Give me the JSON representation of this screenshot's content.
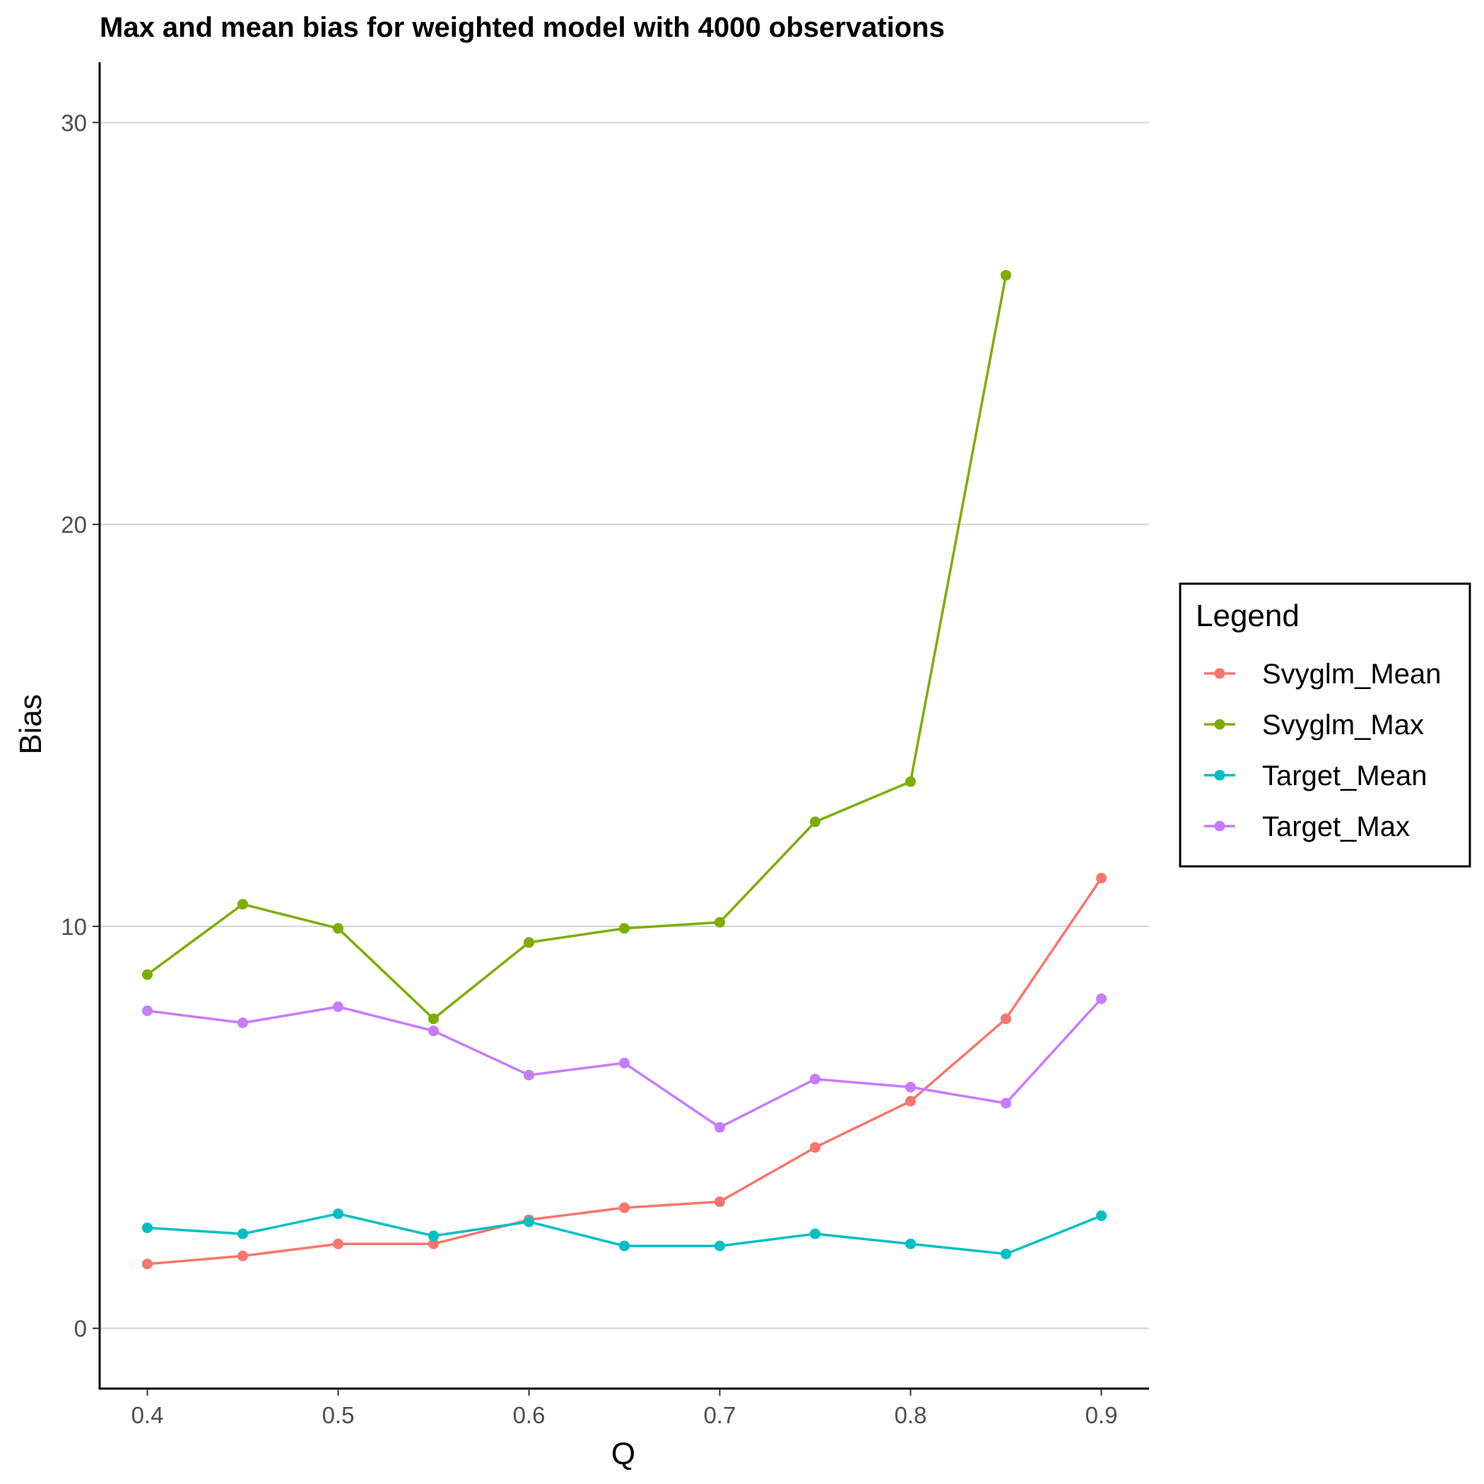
{
  "chart_data": {
    "type": "line",
    "title": "Max and mean bias for weighted model with 4000 observations",
    "xlabel": "Q",
    "ylabel": "Bias",
    "x": [
      0.4,
      0.45,
      0.5,
      0.55,
      0.6,
      0.65,
      0.7,
      0.75,
      0.8,
      0.85,
      0.9
    ],
    "x_ticks": [
      0.4,
      0.5,
      0.6,
      0.7,
      0.8,
      0.9
    ],
    "x_tick_labels": [
      "0.4",
      "0.5",
      "0.6",
      "0.7",
      "0.8",
      "0.9"
    ],
    "y_ticks": [
      0,
      10,
      20,
      30
    ],
    "y_tick_labels": [
      "0",
      "10",
      "20",
      "30"
    ],
    "xlim": [
      0.375,
      0.925
    ],
    "ylim": [
      -1.5,
      31.5
    ],
    "grid": "horizontal major",
    "legend": {
      "title": "Legend",
      "position": "right"
    },
    "series": [
      {
        "name": "Svyglm_Mean",
        "color": "#F8766D",
        "values": [
          1.6,
          1.8,
          2.1,
          2.1,
          2.7,
          3.0,
          3.15,
          4.5,
          5.65,
          7.7,
          11.2
        ]
      },
      {
        "name": "Svyglm_Max",
        "color": "#7CAE00",
        "values": [
          8.8,
          10.55,
          9.95,
          7.7,
          9.6,
          9.95,
          10.1,
          12.6,
          13.6,
          26.2,
          null
        ]
      },
      {
        "name": "Target_Mean",
        "color": "#00BFC4",
        "values": [
          2.5,
          2.35,
          2.85,
          2.3,
          2.65,
          2.05,
          2.05,
          2.35,
          2.1,
          1.85,
          2.8
        ]
      },
      {
        "name": "Target_Max",
        "color": "#C77CFF",
        "values": [
          7.9,
          7.6,
          8.0,
          7.4,
          6.3,
          6.6,
          5.0,
          6.2,
          6.0,
          5.6,
          8.2
        ]
      }
    ]
  }
}
